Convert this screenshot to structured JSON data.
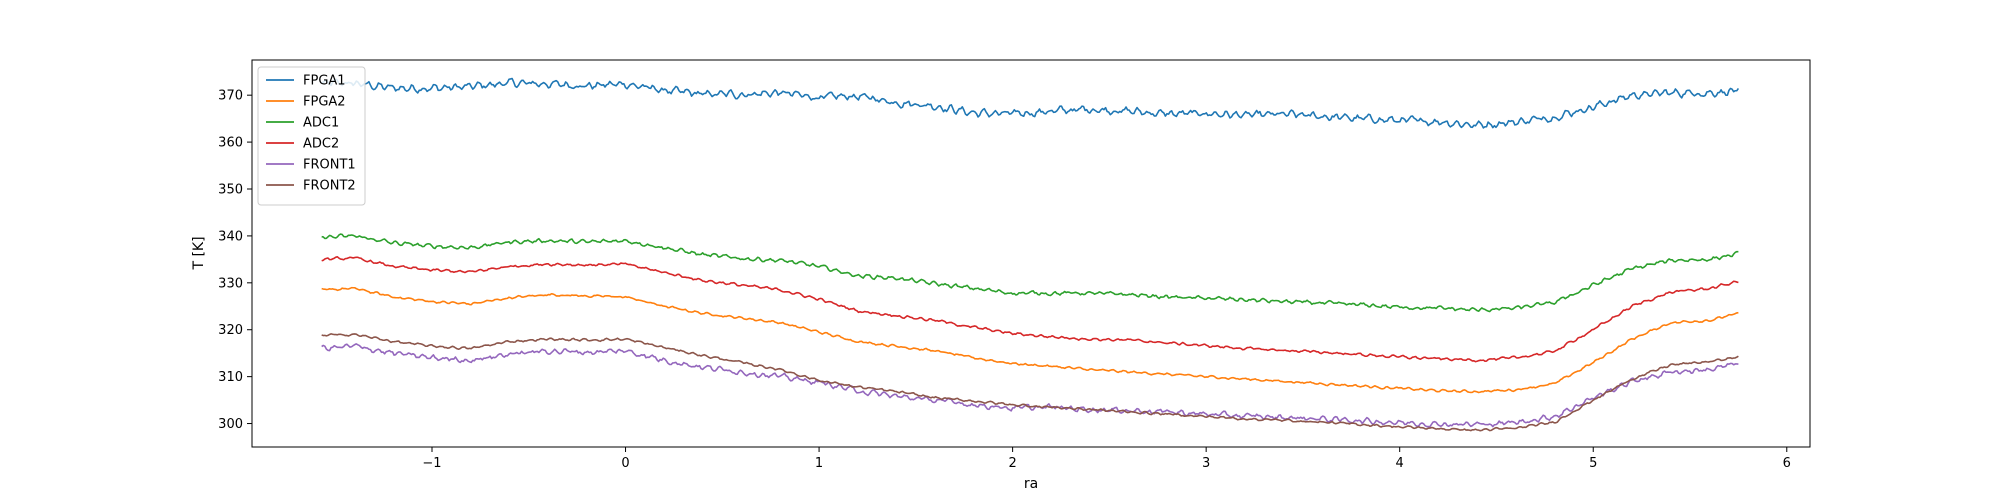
{
  "chart_data": {
    "type": "line",
    "title": "",
    "xlabel": "ra",
    "ylabel": "T [K]",
    "xlim": [
      -1.93,
      6.12
    ],
    "ylim": [
      295,
      377.5
    ],
    "xticks": [
      -1,
      0,
      1,
      2,
      3,
      4,
      5,
      6
    ],
    "yticks": [
      300,
      310,
      320,
      330,
      340,
      350,
      360,
      370
    ],
    "grid": false,
    "legend_position": "top-left",
    "series": [
      {
        "name": "FPGA1",
        "color": "#1f77b4",
        "noise": 1.0,
        "x": [
          -1.57,
          -1.4,
          -1.2,
          -1.0,
          -0.8,
          -0.6,
          -0.4,
          -0.2,
          0.0,
          0.2,
          0.4,
          0.6,
          0.8,
          1.0,
          1.2,
          1.4,
          1.6,
          1.8,
          2.0,
          2.2,
          2.4,
          2.6,
          2.8,
          3.0,
          3.2,
          3.4,
          3.6,
          3.8,
          4.0,
          4.2,
          4.4,
          4.6,
          4.8,
          5.0,
          5.2,
          5.4,
          5.6,
          5.75
        ],
        "y": [
          372.5,
          372.5,
          371.5,
          371.5,
          371.8,
          372.6,
          372.4,
          372.0,
          372.4,
          371.0,
          370.2,
          370.2,
          370.5,
          369.5,
          369.8,
          368.5,
          367.7,
          366.2,
          366.0,
          366.6,
          367.0,
          366.6,
          366.0,
          366.1,
          365.7,
          365.9,
          365.5,
          365.0,
          364.6,
          364.4,
          363.6,
          364.3,
          365.4,
          367.5,
          370.0,
          370.5,
          370.5,
          371.0
        ]
      },
      {
        "name": "FPGA2",
        "color": "#ff7f0e",
        "noise": 0.3,
        "x": [
          -1.57,
          -1.4,
          -1.2,
          -1.0,
          -0.8,
          -0.6,
          -0.4,
          -0.2,
          0.0,
          0.2,
          0.4,
          0.6,
          0.8,
          1.0,
          1.2,
          1.4,
          1.6,
          1.8,
          2.0,
          2.2,
          2.4,
          2.6,
          2.8,
          3.0,
          3.2,
          3.4,
          3.6,
          3.8,
          4.0,
          4.2,
          4.4,
          4.6,
          4.8,
          5.0,
          5.2,
          5.4,
          5.6,
          5.75
        ],
        "y": [
          328.5,
          328.8,
          327.0,
          326.0,
          325.5,
          326.8,
          327.5,
          327.2,
          327.0,
          325.0,
          323.5,
          322.5,
          321.5,
          319.5,
          317.5,
          316.5,
          315.5,
          314.0,
          312.8,
          312.2,
          311.5,
          311.0,
          310.5,
          310.0,
          309.5,
          309.0,
          308.5,
          308.0,
          307.5,
          307.0,
          306.8,
          307.2,
          308.5,
          313.0,
          318.0,
          321.5,
          322.0,
          323.5
        ]
      },
      {
        "name": "ADC1",
        "color": "#2ca02c",
        "noise": 0.5,
        "x": [
          -1.57,
          -1.4,
          -1.2,
          -1.0,
          -0.8,
          -0.6,
          -0.4,
          -0.2,
          0.0,
          0.2,
          0.4,
          0.6,
          0.8,
          1.0,
          1.2,
          1.4,
          1.6,
          1.8,
          2.0,
          2.2,
          2.4,
          2.6,
          2.8,
          3.0,
          3.2,
          3.4,
          3.6,
          3.8,
          4.0,
          4.2,
          4.4,
          4.6,
          4.8,
          5.0,
          5.2,
          5.4,
          5.6,
          5.75
        ],
        "y": [
          339.7,
          340.0,
          338.5,
          337.8,
          337.5,
          338.7,
          339.0,
          338.7,
          339.0,
          337.5,
          336.0,
          335.2,
          334.8,
          333.5,
          331.5,
          331.0,
          329.8,
          328.8,
          327.8,
          327.8,
          327.8,
          327.5,
          327.0,
          326.7,
          326.4,
          326.0,
          325.7,
          325.3,
          324.8,
          324.6,
          324.2,
          324.6,
          325.8,
          329.5,
          333.0,
          334.8,
          335.0,
          336.2
        ]
      },
      {
        "name": "ADC2",
        "color": "#d62728",
        "noise": 0.35,
        "x": [
          -1.57,
          -1.4,
          -1.2,
          -1.0,
          -0.8,
          -0.6,
          -0.4,
          -0.2,
          0.0,
          0.2,
          0.4,
          0.6,
          0.8,
          1.0,
          1.2,
          1.4,
          1.6,
          1.8,
          2.0,
          2.2,
          2.4,
          2.6,
          2.8,
          3.0,
          3.2,
          3.4,
          3.6,
          3.8,
          4.0,
          4.2,
          4.4,
          4.6,
          4.8,
          5.0,
          5.2,
          5.4,
          5.6,
          5.75
        ],
        "y": [
          335.0,
          335.3,
          333.5,
          332.7,
          332.3,
          333.5,
          334.0,
          333.8,
          334.0,
          332.2,
          330.5,
          329.5,
          328.5,
          326.5,
          324.0,
          323.0,
          322.0,
          320.5,
          319.2,
          318.5,
          318.0,
          317.8,
          317.2,
          316.6,
          316.0,
          315.6,
          315.2,
          314.7,
          314.2,
          313.8,
          313.5,
          314.0,
          315.4,
          320.0,
          325.0,
          328.0,
          328.8,
          330.3
        ]
      },
      {
        "name": "FRONT1",
        "color": "#9467bd",
        "noise": 0.7,
        "x": [
          -1.57,
          -1.4,
          -1.2,
          -1.0,
          -0.8,
          -0.6,
          -0.4,
          -0.2,
          0.0,
          0.2,
          0.4,
          0.6,
          0.8,
          1.0,
          1.2,
          1.4,
          1.6,
          1.8,
          2.0,
          2.2,
          2.4,
          2.6,
          2.8,
          3.0,
          3.2,
          3.4,
          3.6,
          3.8,
          4.0,
          4.2,
          4.4,
          4.6,
          4.8,
          5.0,
          5.2,
          5.4,
          5.6,
          5.75
        ],
        "y": [
          316.0,
          316.5,
          315.0,
          314.0,
          313.5,
          314.8,
          315.5,
          315.2,
          315.5,
          313.5,
          312.0,
          311.0,
          310.0,
          308.8,
          307.0,
          305.8,
          305.0,
          304.0,
          303.3,
          303.5,
          303.0,
          302.8,
          302.5,
          302.0,
          301.6,
          301.3,
          301.0,
          300.6,
          300.2,
          299.9,
          299.8,
          300.2,
          301.5,
          305.5,
          309.0,
          311.0,
          311.5,
          312.8
        ]
      },
      {
        "name": "FRONT2",
        "color": "#8c564b",
        "noise": 0.3,
        "x": [
          -1.57,
          -1.4,
          -1.2,
          -1.0,
          -0.8,
          -0.6,
          -0.4,
          -0.2,
          0.0,
          0.2,
          0.4,
          0.6,
          0.8,
          1.0,
          1.2,
          1.4,
          1.6,
          1.8,
          2.0,
          2.2,
          2.4,
          2.6,
          2.8,
          3.0,
          3.2,
          3.4,
          3.6,
          3.8,
          4.0,
          4.2,
          4.4,
          4.6,
          4.8,
          5.0,
          5.2,
          5.4,
          5.6,
          5.75
        ],
        "y": [
          318.8,
          319.0,
          317.5,
          316.5,
          316.0,
          317.5,
          318.0,
          317.8,
          318.0,
          316.2,
          314.5,
          313.0,
          311.5,
          309.2,
          307.8,
          306.8,
          305.5,
          304.8,
          304.0,
          303.5,
          303.0,
          302.5,
          302.0,
          301.5,
          301.0,
          300.7,
          300.3,
          299.8,
          299.3,
          298.9,
          298.6,
          299.0,
          300.3,
          305.0,
          309.5,
          312.5,
          313.2,
          314.2
        ]
      }
    ]
  }
}
